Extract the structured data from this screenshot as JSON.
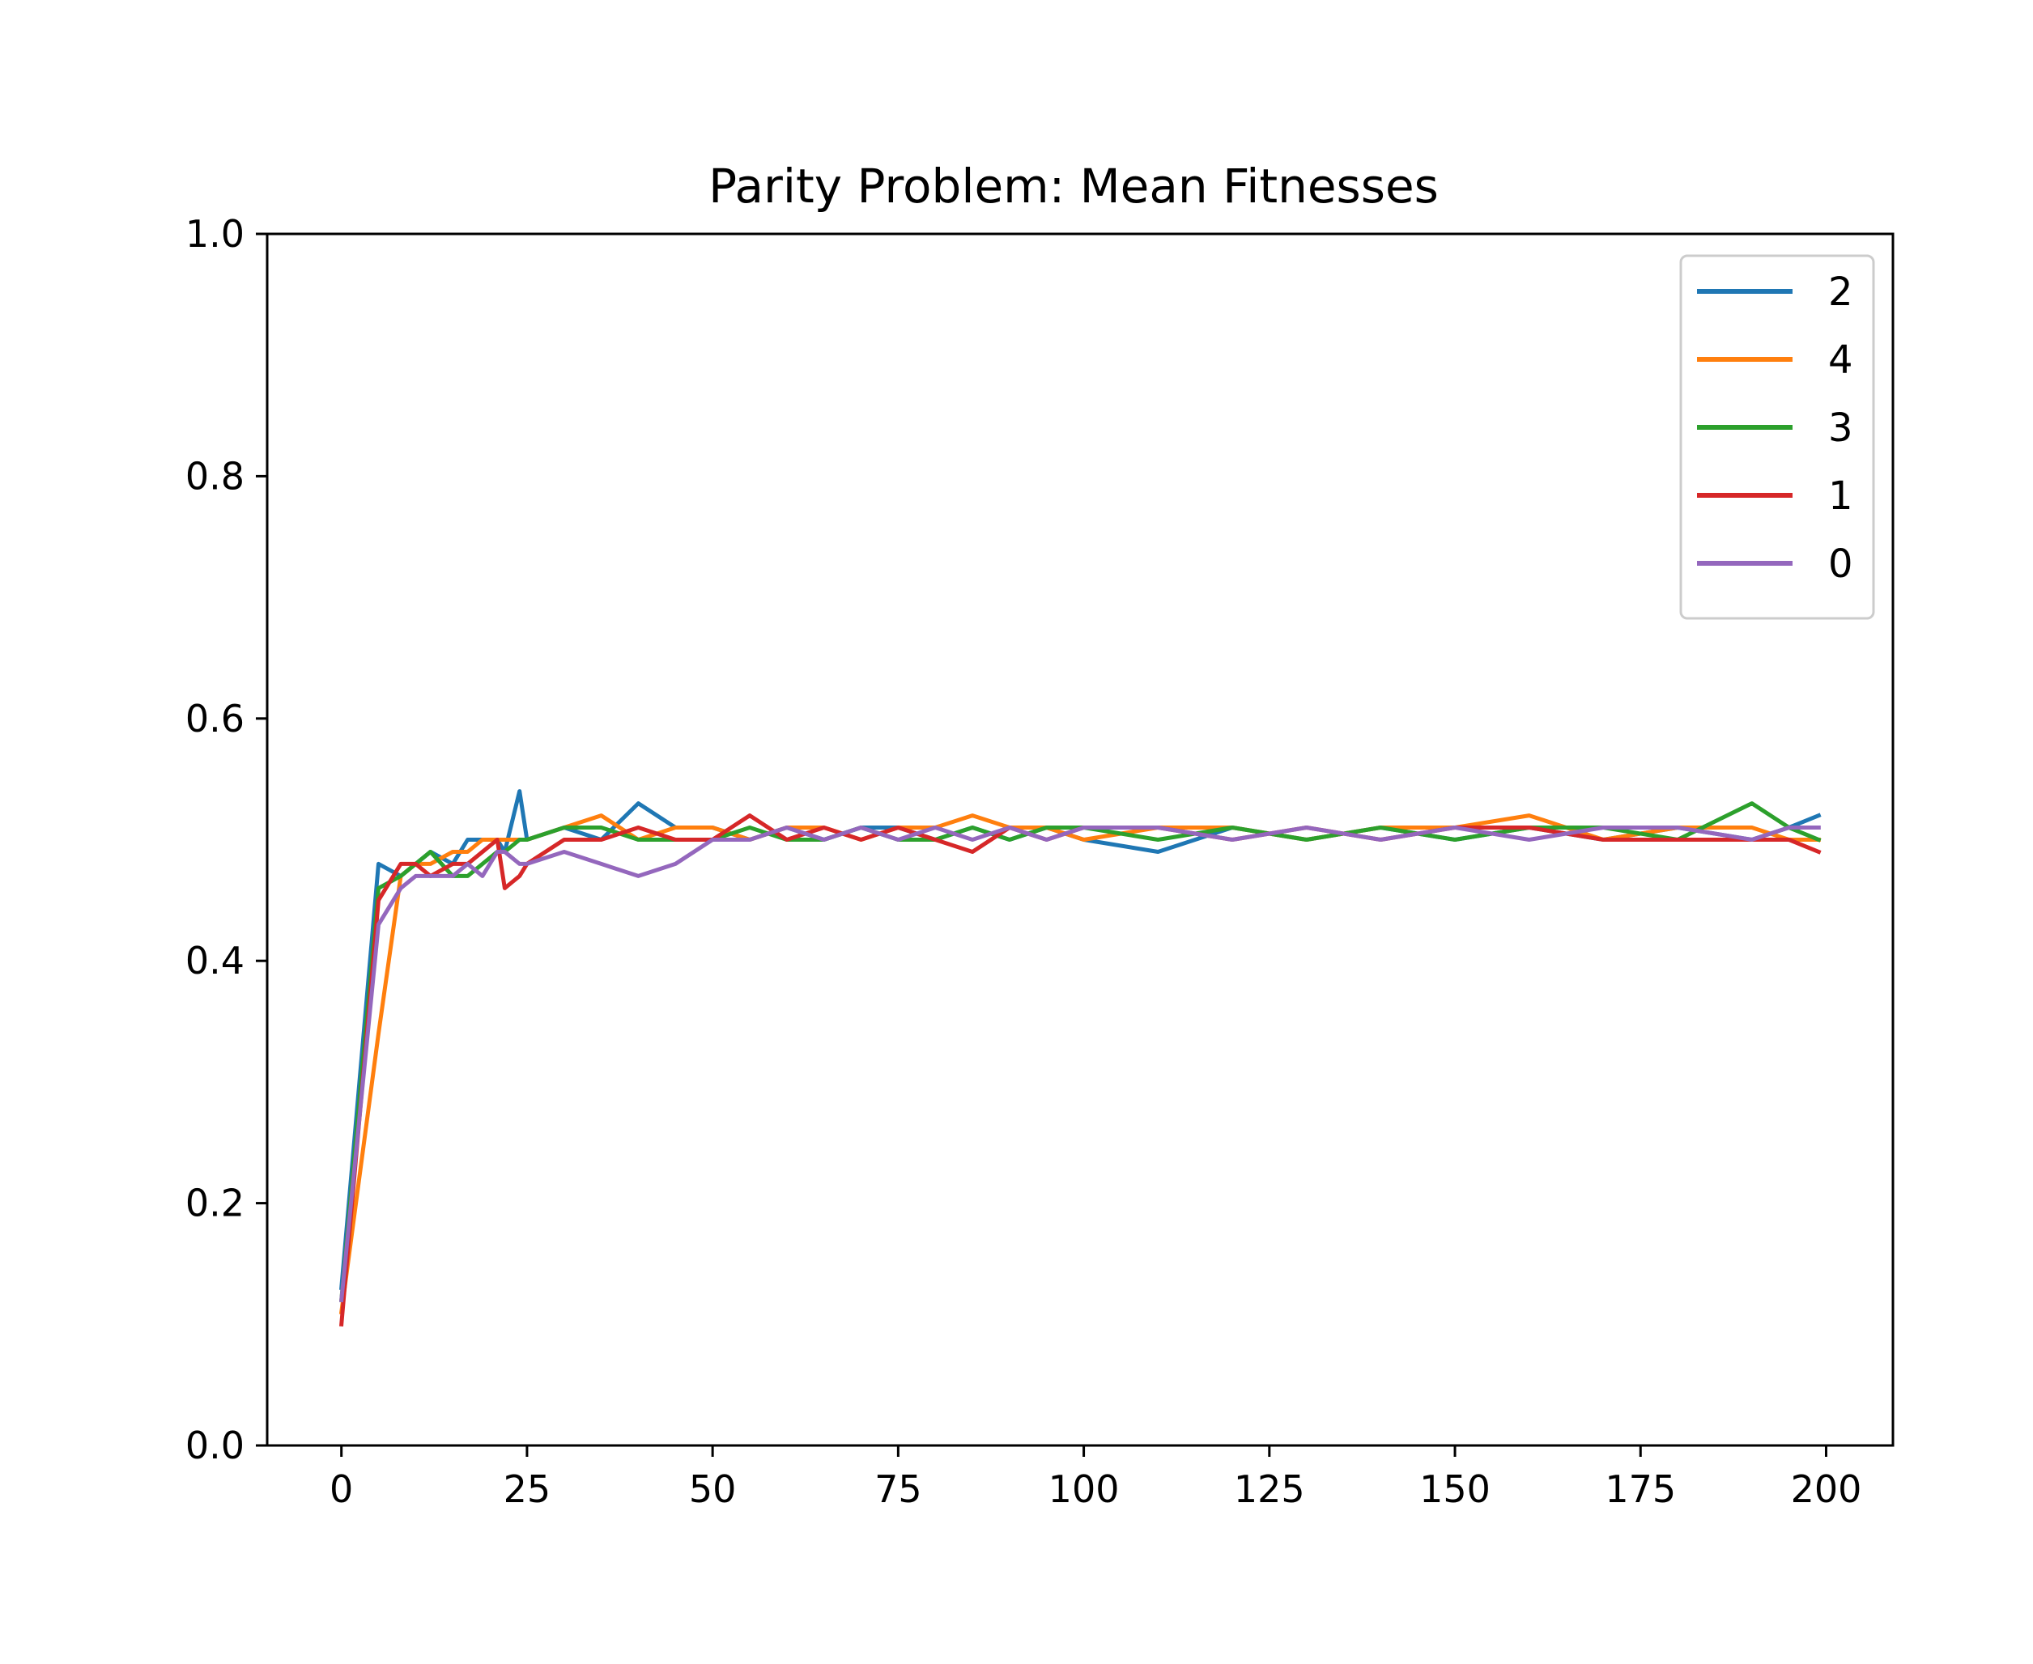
{
  "chart_data": {
    "type": "line",
    "title": "Parity Problem: Mean Fitnesses",
    "xlabel": "",
    "ylabel": "",
    "xlim": [
      -10,
      209
    ],
    "ylim": [
      0,
      1
    ],
    "xticks": [
      0,
      25,
      50,
      75,
      100,
      125,
      150,
      175,
      200
    ],
    "yticks": [
      0.0,
      0.2,
      0.4,
      0.6,
      0.8,
      1.0
    ],
    "ytick_labels": [
      "0.0",
      "0.2",
      "0.4",
      "0.6",
      "0.8",
      "1.0"
    ],
    "grid": false,
    "legend_position": "top-right",
    "x": [
      0,
      5,
      8,
      10,
      12,
      15,
      17,
      19,
      21,
      22,
      24,
      25,
      30,
      35,
      40,
      45,
      50,
      55,
      60,
      65,
      70,
      75,
      80,
      85,
      90,
      95,
      100,
      110,
      120,
      130,
      140,
      150,
      160,
      170,
      180,
      190,
      195,
      199
    ],
    "series": [
      {
        "name": "2",
        "color": "#1f77b4",
        "values": [
          0.13,
          0.48,
          0.47,
          0.48,
          0.49,
          0.48,
          0.5,
          0.5,
          0.5,
          0.49,
          0.54,
          0.5,
          0.51,
          0.5,
          0.53,
          0.51,
          0.51,
          0.5,
          0.51,
          0.5,
          0.51,
          0.51,
          0.5,
          0.51,
          0.5,
          0.51,
          0.5,
          0.49,
          0.51,
          0.5,
          0.51,
          0.5,
          0.51,
          0.5,
          0.51,
          0.5,
          0.51,
          0.52
        ]
      },
      {
        "name": "4",
        "color": "#ff7f0e",
        "values": [
          0.11,
          0.34,
          0.47,
          0.48,
          0.48,
          0.49,
          0.49,
          0.5,
          0.5,
          0.5,
          0.5,
          0.5,
          0.51,
          0.52,
          0.5,
          0.51,
          0.51,
          0.5,
          0.51,
          0.51,
          0.5,
          0.51,
          0.51,
          0.52,
          0.51,
          0.51,
          0.5,
          0.51,
          0.51,
          0.5,
          0.51,
          0.51,
          0.52,
          0.5,
          0.51,
          0.51,
          0.5,
          0.5
        ]
      },
      {
        "name": "3",
        "color": "#2ca02c",
        "values": [
          0.12,
          0.46,
          0.47,
          0.48,
          0.49,
          0.47,
          0.47,
          0.48,
          0.49,
          0.49,
          0.5,
          0.5,
          0.51,
          0.51,
          0.5,
          0.5,
          0.5,
          0.51,
          0.5,
          0.5,
          0.51,
          0.5,
          0.5,
          0.51,
          0.5,
          0.51,
          0.51,
          0.5,
          0.51,
          0.5,
          0.51,
          0.5,
          0.51,
          0.51,
          0.5,
          0.53,
          0.51,
          0.5
        ]
      },
      {
        "name": "1",
        "color": "#d62728",
        "values": [
          0.1,
          0.45,
          0.48,
          0.48,
          0.47,
          0.48,
          0.48,
          0.49,
          0.5,
          0.46,
          0.47,
          0.48,
          0.5,
          0.5,
          0.51,
          0.5,
          0.5,
          0.52,
          0.5,
          0.51,
          0.5,
          0.51,
          0.5,
          0.49,
          0.51,
          0.5,
          0.51,
          0.51,
          0.5,
          0.51,
          0.5,
          0.51,
          0.51,
          0.5,
          0.5,
          0.5,
          0.5,
          0.49
        ]
      },
      {
        "name": "0",
        "color": "#9467bd",
        "values": [
          0.12,
          0.43,
          0.46,
          0.47,
          0.47,
          0.47,
          0.48,
          0.47,
          0.49,
          0.49,
          0.48,
          0.48,
          0.49,
          0.48,
          0.47,
          0.48,
          0.5,
          0.5,
          0.51,
          0.5,
          0.51,
          0.5,
          0.51,
          0.5,
          0.51,
          0.5,
          0.51,
          0.51,
          0.5,
          0.51,
          0.5,
          0.51,
          0.5,
          0.51,
          0.51,
          0.5,
          0.51,
          0.51
        ]
      }
    ]
  }
}
